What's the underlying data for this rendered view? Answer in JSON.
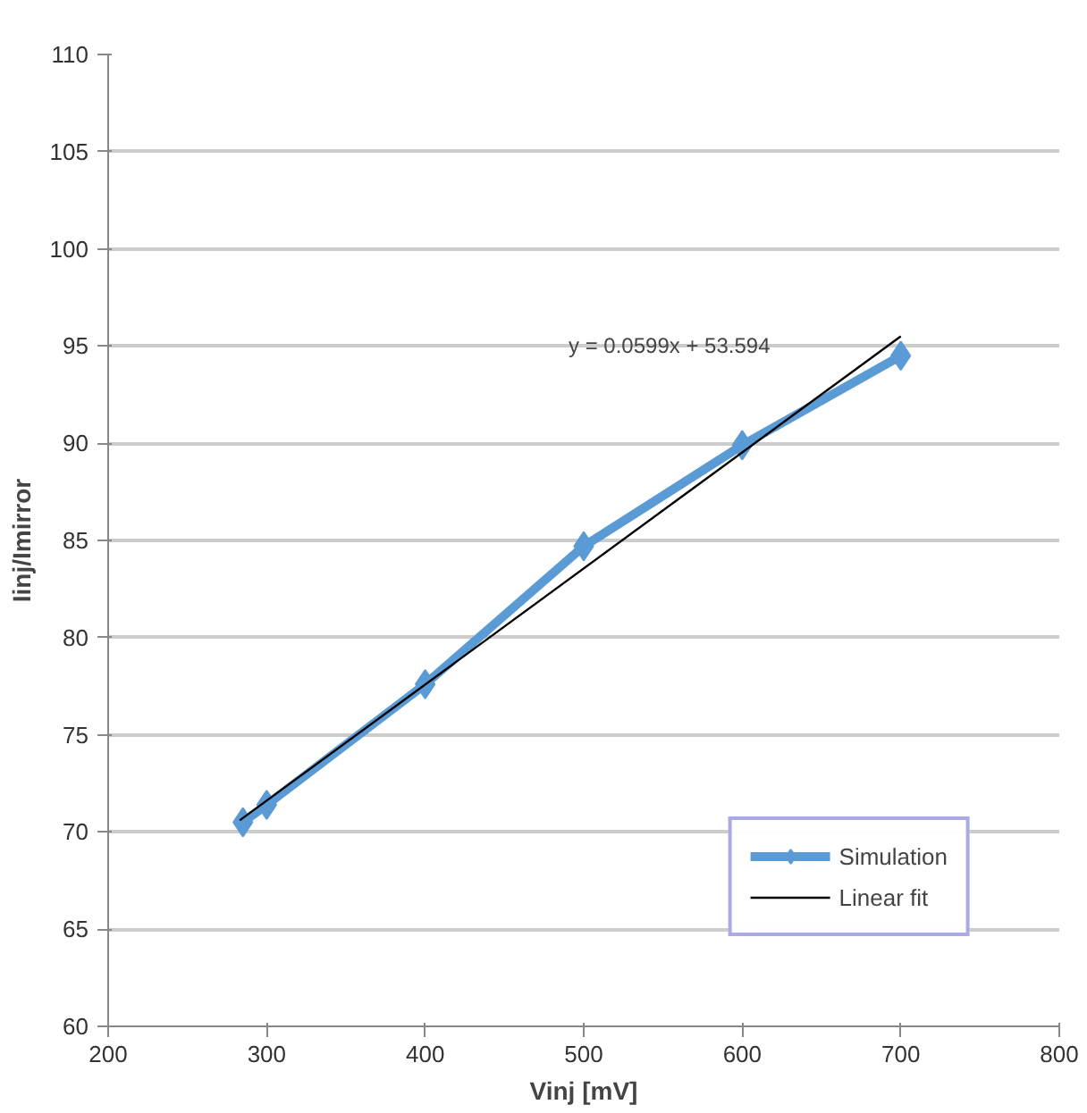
{
  "chart_data": {
    "type": "line",
    "xlabel": "Vinj [mV]",
    "ylabel": "Iinj/Imirror",
    "xlim": [
      200,
      800
    ],
    "xticks": [
      200,
      300,
      400,
      500,
      600,
      700,
      800
    ],
    "ylim": [
      60,
      110
    ],
    "yticks": [
      60,
      65,
      70,
      75,
      80,
      85,
      90,
      95,
      100,
      105,
      110
    ],
    "grid": "y",
    "legend": "bottom right",
    "marker": "diamond",
    "line_style": "solid",
    "series": [
      {
        "name": "Simulation",
        "color": "#5b9bd5",
        "x": [
          285,
          300,
          400,
          500,
          600,
          700
        ],
        "values": [
          70.5,
          71.4,
          77.6,
          84.7,
          89.9,
          94.5
        ]
      },
      {
        "name": "Linear fit",
        "color": "#000000",
        "marker": "none",
        "x": [
          283,
          700
        ],
        "values": [
          70.6,
          95.5
        ]
      }
    ],
    "annotations": [
      "y = 0.0599x + 53.594"
    ]
  }
}
